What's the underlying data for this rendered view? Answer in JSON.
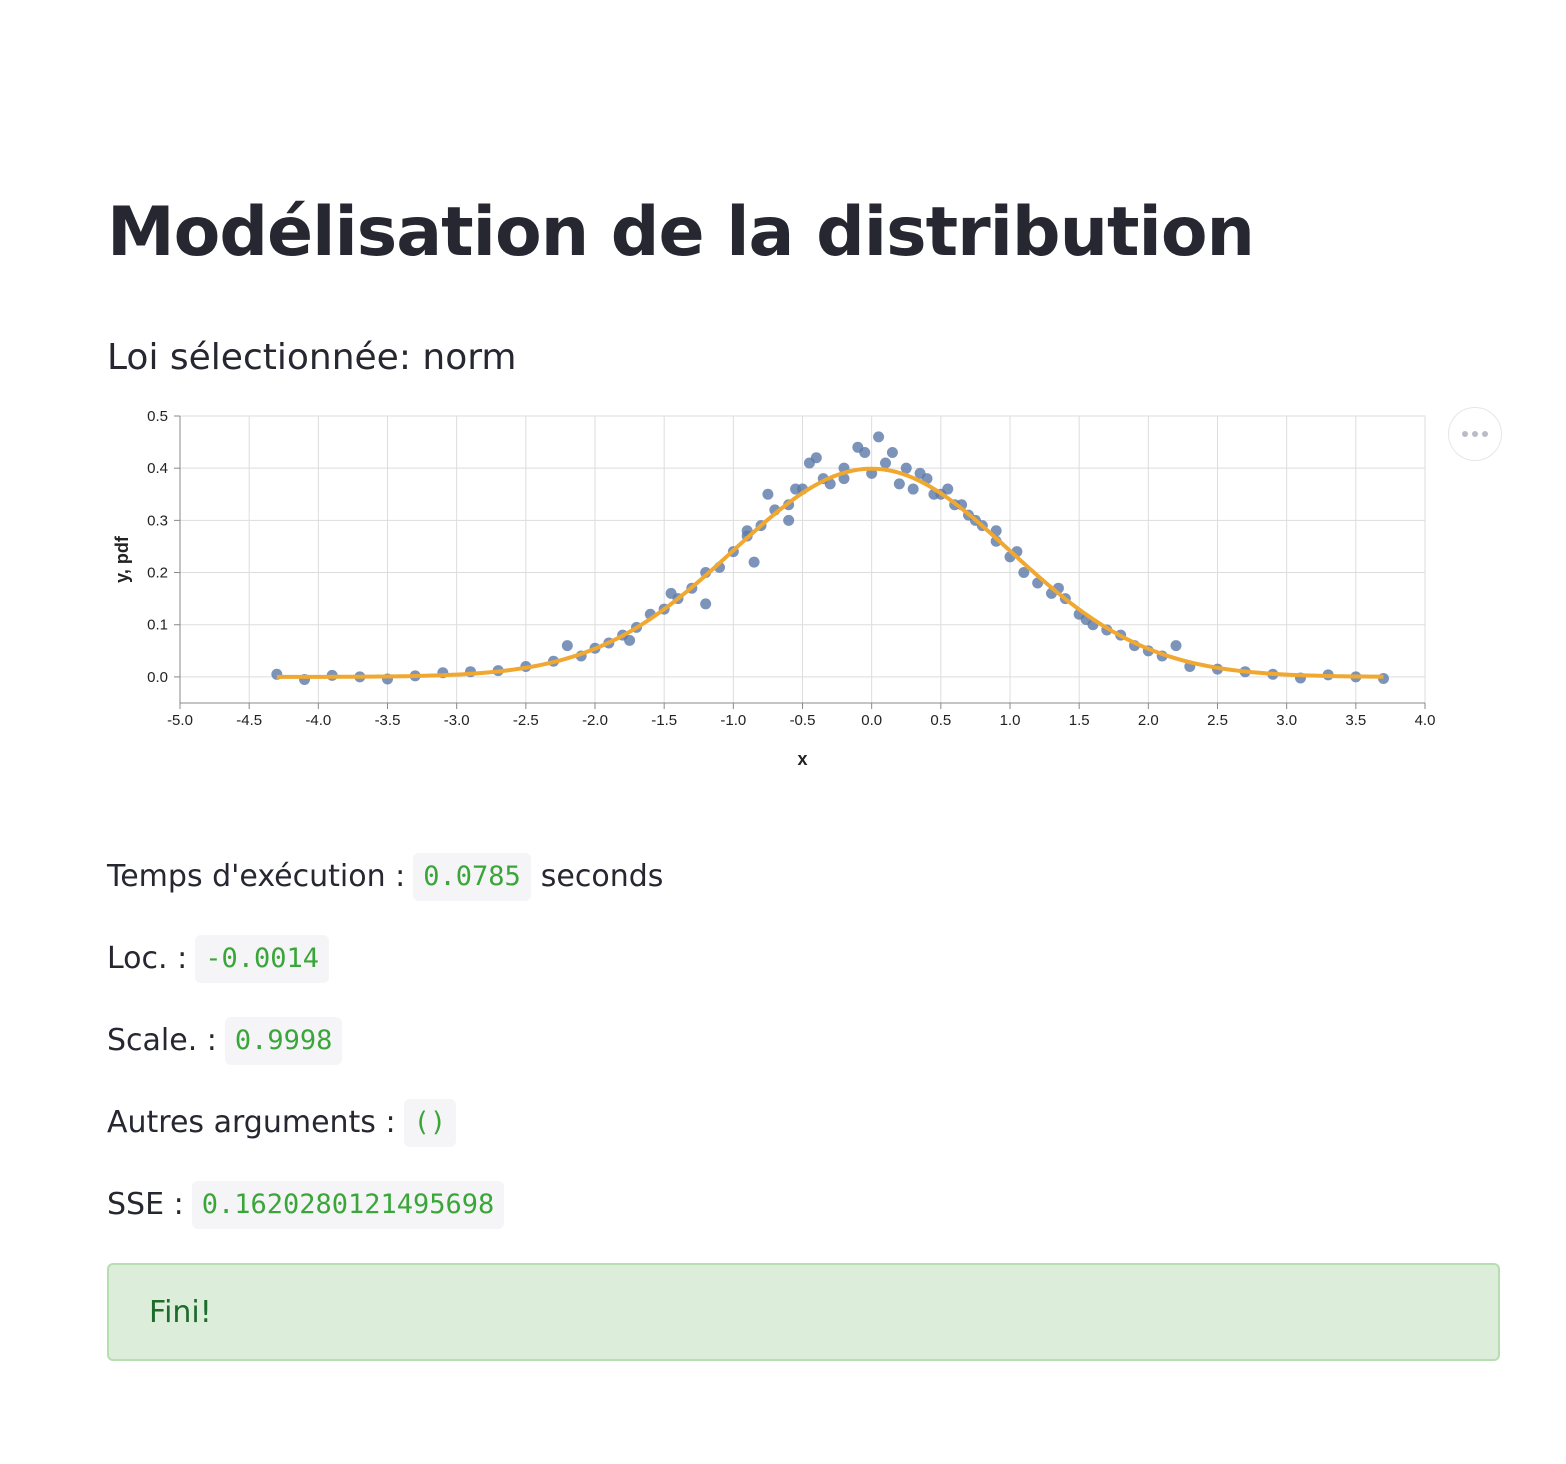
{
  "title": "Modélisation de la distribution",
  "section": "Loi sélectionnée: norm",
  "results": {
    "time_label": "Temps d'exécution :",
    "time_value": "0.0785",
    "time_unit": "seconds",
    "loc_label": "Loc. :",
    "loc_value": "-0.0014",
    "scale_label": "Scale. :",
    "scale_value": "0.9998",
    "args_label": "Autres arguments :",
    "args_value": "()",
    "sse_label": "SSE :",
    "sse_value": "0.1620280121495698"
  },
  "alert": {
    "message": "Fini!"
  },
  "menu": {
    "icon": "more-horizontal-icon"
  },
  "colors": {
    "points": "#5b79a8",
    "fit_line": "#f0a830",
    "success_bg": "#dcedda",
    "code_text": "#3aa63a"
  },
  "chart_data": {
    "type": "scatter",
    "xlabel": "x",
    "ylabel": "y, pdf",
    "xlim": [
      -5.0,
      4.0
    ],
    "ylim": [
      -0.05,
      0.5
    ],
    "xticks": [
      "-5.0",
      "-4.5",
      "-4.0",
      "-3.5",
      "-3.0",
      "-2.5",
      "-2.0",
      "-1.5",
      "-1.0",
      "-0.5",
      "0.0",
      "0.5",
      "1.0",
      "1.5",
      "2.0",
      "2.5",
      "3.0",
      "3.5",
      "4.0"
    ],
    "yticks": [
      "0.0",
      "0.1",
      "0.2",
      "0.3",
      "0.4",
      "0.5"
    ],
    "grid": true,
    "series": [
      {
        "kind": "points",
        "x": [
          -4.3,
          -4.1,
          -3.9,
          -3.7,
          -3.5,
          -3.3,
          -3.1,
          -2.9,
          -2.7,
          -2.5,
          -2.3,
          -2.1,
          -2.0,
          -1.9,
          -1.8,
          -1.7,
          -1.6,
          -1.5,
          -1.4,
          -1.3,
          -1.2,
          -1.1,
          -1.0,
          -0.9,
          -0.8,
          -0.7,
          -0.6,
          -0.5,
          -0.4,
          -0.3,
          -0.2,
          -0.1,
          0.0,
          0.1,
          0.2,
          0.3,
          0.4,
          0.5,
          0.6,
          0.7,
          0.8,
          0.9,
          1.0,
          1.1,
          1.2,
          1.3,
          1.4,
          1.5,
          1.6,
          1.7,
          1.8,
          1.9,
          2.0,
          2.1,
          2.3,
          2.5,
          2.7,
          2.9,
          3.1,
          3.3,
          3.5,
          3.7,
          -0.35,
          -0.2,
          0.05,
          0.15,
          0.35,
          0.55,
          -0.75,
          -0.6,
          0.75,
          1.05,
          -1.2,
          -0.85,
          1.35,
          -1.75,
          1.55,
          -1.45,
          -0.05,
          0.25,
          -0.45,
          0.45,
          -2.2,
          2.2,
          -0.9,
          0.9,
          -0.55,
          0.65
        ],
        "y": [
          0.005,
          -0.005,
          0.003,
          0.0,
          -0.004,
          0.002,
          0.008,
          0.01,
          0.012,
          0.02,
          0.03,
          0.04,
          0.055,
          0.065,
          0.08,
          0.095,
          0.12,
          0.13,
          0.15,
          0.17,
          0.2,
          0.21,
          0.24,
          0.27,
          0.29,
          0.32,
          0.33,
          0.36,
          0.42,
          0.37,
          0.38,
          0.44,
          0.39,
          0.41,
          0.37,
          0.36,
          0.38,
          0.35,
          0.33,
          0.31,
          0.29,
          0.26,
          0.23,
          0.2,
          0.18,
          0.16,
          0.15,
          0.12,
          0.1,
          0.09,
          0.08,
          0.06,
          0.05,
          0.04,
          0.02,
          0.015,
          0.01,
          0.005,
          -0.002,
          0.004,
          0.0,
          -0.003,
          0.38,
          0.4,
          0.46,
          0.43,
          0.39,
          0.36,
          0.35,
          0.3,
          0.3,
          0.24,
          0.14,
          0.22,
          0.17,
          0.07,
          0.11,
          0.16,
          0.43,
          0.4,
          0.41,
          0.35,
          0.06,
          0.06,
          0.28,
          0.28,
          0.36,
          0.33
        ]
      },
      {
        "kind": "line",
        "model": "norm",
        "loc": -0.0014,
        "scale": 0.9998,
        "x_range": [
          -4.3,
          3.7
        ]
      }
    ]
  }
}
